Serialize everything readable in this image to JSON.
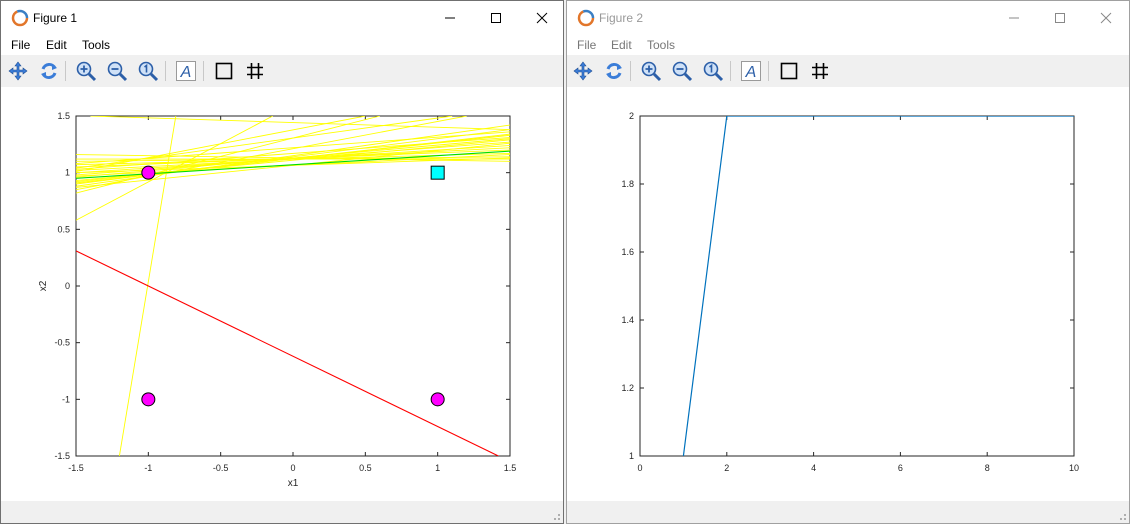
{
  "figure1": {
    "title": "Figure 1",
    "menu": [
      "File",
      "Edit",
      "Tools"
    ],
    "chart_data": {
      "type": "scatter",
      "xlabel": "x1",
      "ylabel": "x2",
      "xlim": [
        -1.5,
        1.5
      ],
      "ylim": [
        -1.5,
        1.5
      ],
      "xticks": [
        -1.5,
        -1,
        -0.5,
        0,
        0.5,
        1,
        1.5
      ],
      "yticks": [
        -1.5,
        -1,
        -0.5,
        0,
        0.5,
        1,
        1.5
      ],
      "xtick_labels": [
        "-1.5",
        "-1",
        "-0.5",
        "0",
        "0.5",
        "1",
        "1.5"
      ],
      "ytick_labels": [
        "-1.5",
        "-1",
        "-0.5",
        "0",
        "0.5",
        "1",
        "1.5"
      ],
      "points": [
        {
          "x": -1,
          "y": 1,
          "marker": "circle",
          "color": "#ff00ff"
        },
        {
          "x": -1,
          "y": -1,
          "marker": "circle",
          "color": "#ff00ff"
        },
        {
          "x": 1,
          "y": -1,
          "marker": "circle",
          "color": "#ff00ff"
        },
        {
          "x": 1,
          "y": 1,
          "marker": "square",
          "color": "#00ffff"
        }
      ],
      "lines": [
        {
          "color": "#ff0000",
          "points": [
            [
              -1.5,
              0.31
            ],
            [
              1.42,
              -1.5
            ]
          ]
        },
        {
          "color": "#00dd00",
          "points": [
            [
              -1.5,
              0.95
            ],
            [
              1.5,
              1.19
            ]
          ]
        },
        {
          "color": "#ffff00",
          "points": [
            [
              -1.2,
              -1.5
            ],
            [
              -0.81,
              1.5
            ]
          ]
        },
        {
          "color": "#ffff00",
          "points": [
            [
              -1.5,
              0.58
            ],
            [
              -0.14,
              1.5
            ]
          ]
        },
        {
          "color": "#ffff00",
          "points": [
            [
              -1.5,
              0.82
            ],
            [
              0.6,
              1.5
            ]
          ]
        },
        {
          "color": "#ffff00",
          "points": [
            [
              -1.5,
              0.85
            ],
            [
              1.2,
              1.5
            ]
          ]
        },
        {
          "color": "#ffff00",
          "points": [
            [
              -1.5,
              0.88
            ],
            [
              1.5,
              1.42
            ]
          ]
        },
        {
          "color": "#ffff00",
          "points": [
            [
              -1.5,
              0.9
            ],
            [
              1.5,
              1.38
            ]
          ]
        },
        {
          "color": "#ffff00",
          "points": [
            [
              -1.5,
              0.92
            ],
            [
              1.5,
              1.33
            ]
          ]
        },
        {
          "color": "#ffff00",
          "points": [
            [
              -1.5,
              0.96
            ],
            [
              1.5,
              1.3
            ]
          ]
        },
        {
          "color": "#ffff00",
          "points": [
            [
              -1.5,
              0.98
            ],
            [
              1.5,
              1.27
            ]
          ]
        },
        {
          "color": "#ffff00",
          "points": [
            [
              -1.5,
              1.0
            ],
            [
              1.5,
              1.24
            ]
          ]
        },
        {
          "color": "#ffff00",
          "points": [
            [
              -1.5,
              1.02
            ],
            [
              1.5,
              1.22
            ]
          ]
        },
        {
          "color": "#ffff00",
          "points": [
            [
              -1.5,
              1.05
            ],
            [
              1.5,
              1.2
            ]
          ]
        },
        {
          "color": "#ffff00",
          "points": [
            [
              -1.5,
              1.07
            ],
            [
              1.5,
              1.17
            ]
          ]
        },
        {
          "color": "#ffff00",
          "points": [
            [
              -1.5,
              1.1
            ],
            [
              1.5,
              1.14
            ]
          ]
        },
        {
          "color": "#ffff00",
          "points": [
            [
              -1.5,
              1.12
            ],
            [
              1.5,
              1.12
            ]
          ]
        },
        {
          "color": "#ffff00",
          "points": [
            [
              -1.5,
              1.16
            ],
            [
              1.5,
              1.1
            ]
          ]
        },
        {
          "color": "#ffff00",
          "points": [
            [
              -1.5,
              1.08
            ],
            [
              1.5,
              1.36
            ]
          ]
        },
        {
          "color": "#ffff00",
          "points": [
            [
              -1.5,
              1.03
            ],
            [
              1.5,
              1.31
            ]
          ]
        },
        {
          "color": "#ffff00",
          "points": [
            [
              -1.5,
              0.93
            ],
            [
              1.5,
              1.29
            ]
          ]
        },
        {
          "color": "#ffff00",
          "points": [
            [
              -1.5,
              0.87
            ],
            [
              1.5,
              1.26
            ]
          ]
        },
        {
          "color": "#ffff00",
          "points": [
            [
              -1.5,
              0.97
            ],
            [
              1.5,
              1.16
            ]
          ]
        },
        {
          "color": "#ffff00",
          "points": [
            [
              -1.5,
              1.0
            ],
            [
              1.5,
              1.13
            ]
          ]
        },
        {
          "color": "#ffff00",
          "points": [
            [
              -1.5,
              0.91
            ],
            [
              1.5,
              1.34
            ]
          ]
        },
        {
          "color": "#ffff00",
          "points": [
            [
              -1.5,
              1.04
            ],
            [
              1.1,
              1.5
            ]
          ]
        },
        {
          "color": "#ffff00",
          "points": [
            [
              -1.5,
              1.01
            ],
            [
              0.5,
              1.5
            ]
          ]
        },
        {
          "color": "#ffff00",
          "points": [
            [
              -1.4,
              1.5
            ],
            [
              1.5,
              1.38
            ]
          ]
        }
      ]
    }
  },
  "figure2": {
    "title": "Figure 2",
    "menu": [
      "File",
      "Edit",
      "Tools"
    ],
    "chart_data": {
      "type": "line",
      "xlabel": "",
      "ylabel": "",
      "xlim": [
        0,
        10
      ],
      "ylim": [
        1,
        2
      ],
      "xticks": [
        0,
        2,
        4,
        6,
        8,
        10
      ],
      "yticks": [
        1,
        1.2,
        1.4,
        1.6,
        1.8,
        2
      ],
      "xtick_labels": [
        "0",
        "2",
        "4",
        "6",
        "8",
        "10"
      ],
      "ytick_labels": [
        "1",
        "1.2",
        "1.4",
        "1.6",
        "1.8",
        "2"
      ],
      "series": [
        {
          "color": "#0072bd",
          "x": [
            1,
            2,
            3,
            4,
            5,
            6,
            7,
            8,
            9,
            10
          ],
          "y": [
            1,
            2,
            2,
            2,
            2,
            2,
            2,
            2,
            2,
            2
          ]
        }
      ]
    }
  },
  "toolbar_icons": [
    "pan-icon",
    "rotate-icon",
    "zoom-in-icon",
    "zoom-out-icon",
    "zoom-reset-icon",
    "text-insert-icon",
    "axes-box-icon",
    "grid-icon"
  ]
}
